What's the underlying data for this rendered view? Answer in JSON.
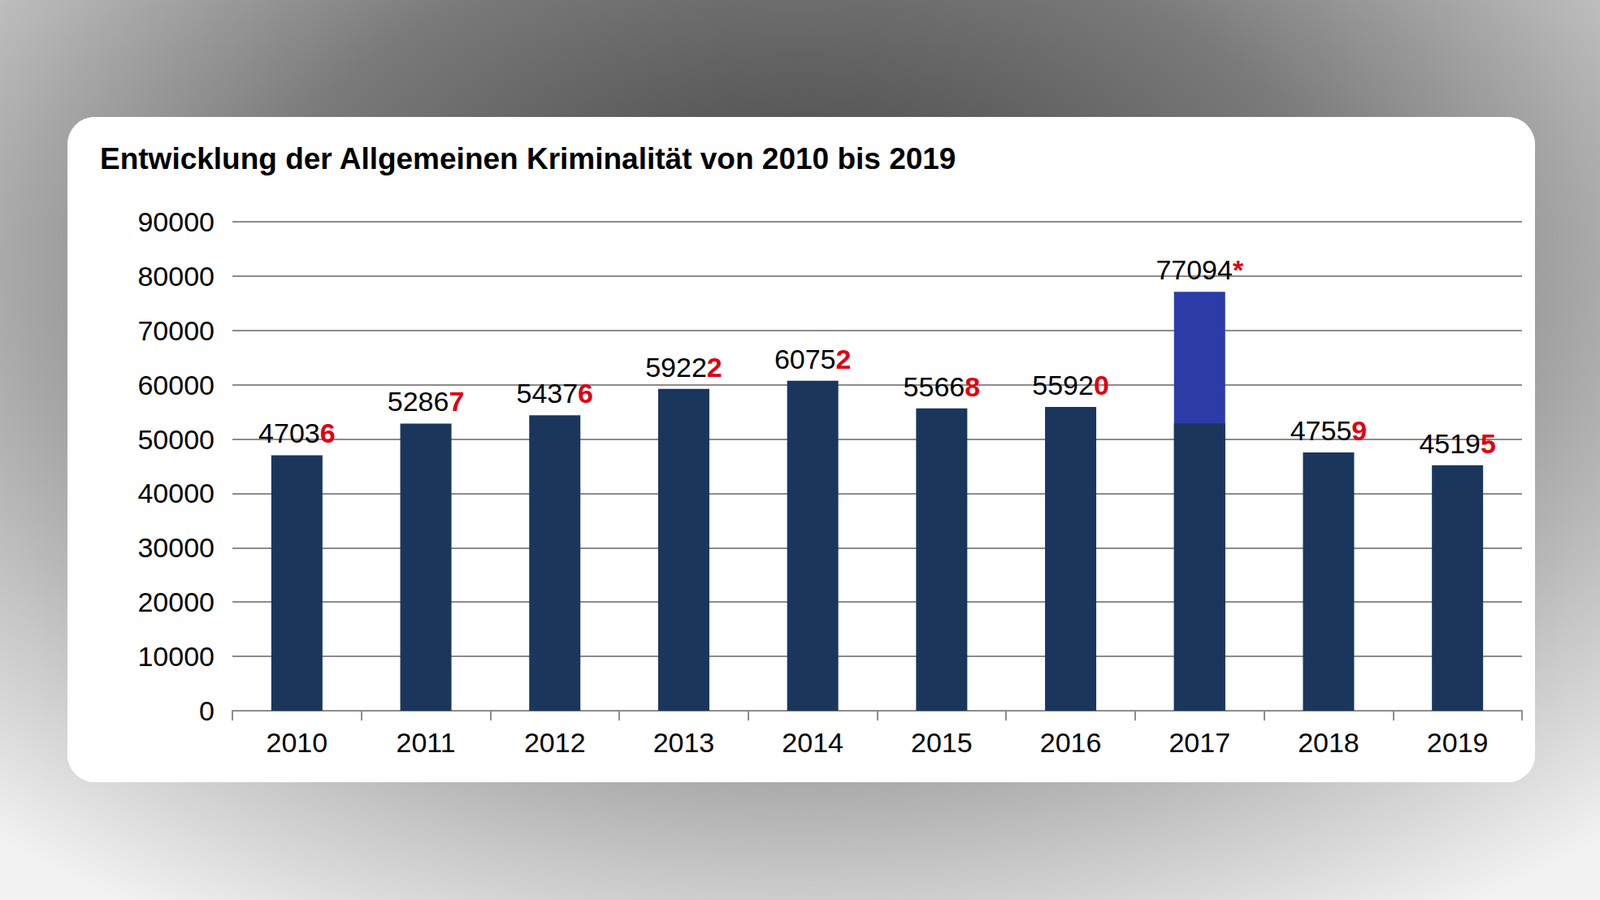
{
  "chart_data": {
    "type": "bar",
    "title": "Entwicklung der Allgemeinen Kriminalität von 2010 bis 2019",
    "categories": [
      "2010",
      "2011",
      "2012",
      "2013",
      "2014",
      "2015",
      "2016",
      "2017",
      "2018",
      "2019"
    ],
    "series": [
      {
        "color": "#2b3ca8",
        "values": [
          null,
          null,
          null,
          null,
          null,
          null,
          null,
          77094,
          null,
          null
        ],
        "value_labels": [
          null,
          null,
          null,
          null,
          null,
          null,
          null,
          "77094*",
          null,
          null
        ]
      },
      {
        "color": "#1b365d",
        "values": [
          47036,
          52867,
          54376,
          59222,
          60752,
          55668,
          55920,
          52900,
          47559,
          45195
        ],
        "value_labels": [
          "47036",
          "52867",
          "54376",
          "59222",
          "60752",
          "55668",
          "55920",
          null,
          "47559",
          "45195"
        ]
      }
    ],
    "ylim": [
      0,
      90000
    ],
    "yticks": [
      0,
      10000,
      20000,
      30000,
      40000,
      50000,
      60000,
      70000,
      80000,
      90000
    ],
    "grid": true,
    "data_labels": true
  }
}
